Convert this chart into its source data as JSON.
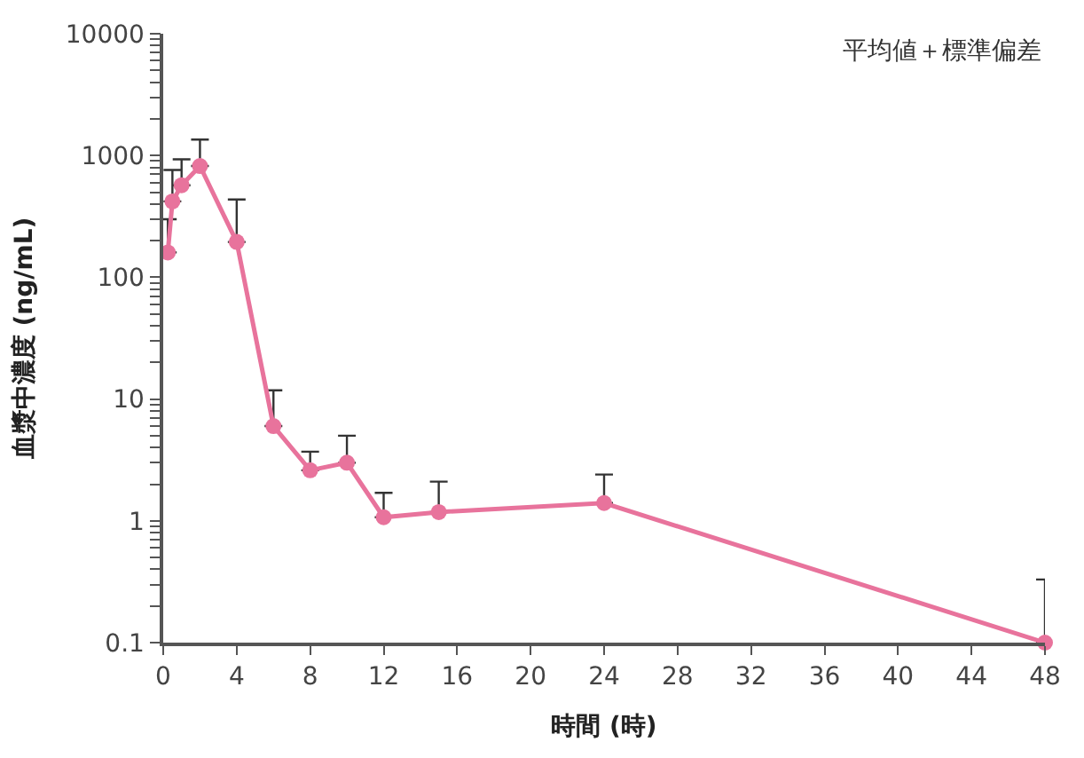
{
  "chart_data": {
    "type": "line",
    "xlabel": "時間 (時)",
    "ylabel": "血漿中濃度 (ng/mL)",
    "annotations": [
      "平均値＋標準偏差"
    ],
    "x": [
      0.25,
      0.5,
      1,
      2,
      4,
      6,
      8,
      10,
      12,
      15,
      24,
      48
    ],
    "series": [
      {
        "color": "#e8739c",
        "values": [
          160,
          420,
          570,
          820,
          195,
          6.0,
          2.6,
          3.0,
          1.07,
          1.18,
          1.4,
          0.1
        ],
        "errors": [
          [
            160,
            300
          ],
          [
            420,
            760
          ],
          [
            570,
            930
          ],
          [
            820,
            1350
          ],
          [
            195,
            435
          ],
          [
            6.0,
            11.8
          ],
          [
            2.6,
            3.7
          ],
          [
            3.0,
            5.0
          ],
          [
            1.07,
            1.7
          ],
          [
            1.18,
            2.1
          ],
          [
            1.4,
            2.4
          ],
          [
            0.1,
            0.33
          ]
        ]
      }
    ],
    "log": "y",
    "xlim": [
      0,
      48
    ],
    "xticks": [
      0,
      4,
      8,
      12,
      16,
      20,
      24,
      28,
      32,
      36,
      40,
      44,
      48
    ],
    "ylim": [
      0.1,
      10000
    ],
    "yticks": [
      0.1,
      {
        "value": 0.2,
        "label": null
      },
      {
        "value": 0.3,
        "label": null
      },
      {
        "value": 0.4,
        "label": null
      },
      {
        "value": 0.5,
        "label": null
      },
      {
        "value": 0.6,
        "label": null
      },
      {
        "value": 0.7,
        "label": null
      },
      {
        "value": 0.8,
        "label": null
      },
      {
        "value": 0.9,
        "label": null
      },
      1,
      {
        "value": 2,
        "label": null
      },
      {
        "value": 3,
        "label": null
      },
      {
        "value": 4,
        "label": null
      },
      {
        "value": 5,
        "label": null
      },
      {
        "value": 6,
        "label": null
      },
      {
        "value": 7,
        "label": null
      },
      {
        "value": 8,
        "label": null
      },
      {
        "value": 9,
        "label": null
      },
      10,
      {
        "value": 20,
        "label": null
      },
      {
        "value": 30,
        "label": null
      },
      {
        "value": 40,
        "label": null
      },
      {
        "value": 50,
        "label": null
      },
      {
        "value": 60,
        "label": null
      },
      {
        "value": 70,
        "label": null
      },
      {
        "value": 80,
        "label": null
      },
      {
        "value": 90,
        "label": null
      },
      100,
      {
        "value": 200,
        "label": null
      },
      {
        "value": 300,
        "label": null
      },
      {
        "value": 400,
        "label": null
      },
      {
        "value": 500,
        "label": null
      },
      {
        "value": 600,
        "label": null
      },
      {
        "value": 700,
        "label": null
      },
      {
        "value": 800,
        "label": null
      },
      {
        "value": 900,
        "label": null
      },
      1000,
      {
        "value": 2000,
        "label": null
      },
      {
        "value": 3000,
        "label": null
      },
      {
        "value": 4000,
        "label": null
      },
      {
        "value": 5000,
        "label": null
      },
      {
        "value": 6000,
        "label": null
      },
      {
        "value": 7000,
        "label": null
      },
      {
        "value": 8000,
        "label": null
      },
      {
        "value": 9000,
        "label": null
      },
      10000
    ],
    "legend": false,
    "marker": "circle",
    "line_style": "solid"
  }
}
